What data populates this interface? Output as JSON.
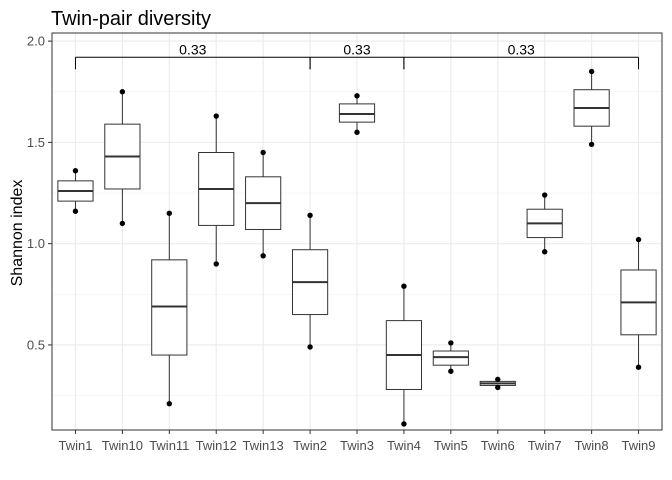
{
  "chart_data": {
    "type": "box",
    "title": "Twin-pair diversity",
    "xlabel": "",
    "ylabel": "Shannon index",
    "ylim": [
      0.08,
      2.04
    ],
    "yticks": [
      0.5,
      1.0,
      1.5,
      2.0
    ],
    "ytick_labels": [
      "0.5",
      "1.0",
      "1.5",
      "2.0"
    ],
    "grid": true,
    "legend": "none",
    "categories": [
      "Twin1",
      "Twin10",
      "Twin11",
      "Twin12",
      "Twin13",
      "Twin2",
      "Twin3",
      "Twin4",
      "Twin5",
      "Twin6",
      "Twin7",
      "Twin8",
      "Twin9"
    ],
    "boxes": [
      {
        "min": 1.16,
        "q1": 1.21,
        "median": 1.26,
        "q3": 1.31,
        "max": 1.36
      },
      {
        "min": 1.1,
        "q1": 1.27,
        "median": 1.43,
        "q3": 1.59,
        "max": 1.75
      },
      {
        "min": 0.21,
        "q1": 0.45,
        "median": 0.69,
        "q3": 0.92,
        "max": 1.15
      },
      {
        "min": 0.9,
        "q1": 1.09,
        "median": 1.27,
        "q3": 1.45,
        "max": 1.63
      },
      {
        "min": 0.94,
        "q1": 1.07,
        "median": 1.2,
        "q3": 1.33,
        "max": 1.45
      },
      {
        "min": 0.49,
        "q1": 0.65,
        "median": 0.81,
        "q3": 0.97,
        "max": 1.14
      },
      {
        "min": 1.55,
        "q1": 1.6,
        "median": 1.64,
        "q3": 1.69,
        "max": 1.73
      },
      {
        "min": 0.11,
        "q1": 0.28,
        "median": 0.45,
        "q3": 0.62,
        "max": 0.79
      },
      {
        "min": 0.37,
        "q1": 0.4,
        "median": 0.44,
        "q3": 0.47,
        "max": 0.51
      },
      {
        "min": 0.29,
        "q1": 0.3,
        "median": 0.31,
        "q3": 0.32,
        "max": 0.33
      },
      {
        "min": 0.96,
        "q1": 1.03,
        "median": 1.1,
        "q3": 1.17,
        "max": 1.24
      },
      {
        "min": 1.49,
        "q1": 1.58,
        "median": 1.67,
        "q3": 1.76,
        "max": 1.85
      },
      {
        "min": 0.39,
        "q1": 0.55,
        "median": 0.71,
        "q3": 0.87,
        "max": 1.02
      }
    ],
    "points": [
      {
        "category": "Twin1",
        "values": [
          1.16,
          1.36
        ]
      },
      {
        "category": "Twin10",
        "values": [
          1.1,
          1.75
        ]
      },
      {
        "category": "Twin11",
        "values": [
          0.21,
          1.15
        ]
      },
      {
        "category": "Twin12",
        "values": [
          0.9,
          1.63
        ]
      },
      {
        "category": "Twin13",
        "values": [
          0.94,
          1.45
        ]
      },
      {
        "category": "Twin2",
        "values": [
          0.49,
          1.14
        ]
      },
      {
        "category": "Twin3",
        "values": [
          1.55,
          1.73
        ]
      },
      {
        "category": "Twin4",
        "values": [
          0.11,
          0.79
        ]
      },
      {
        "category": "Twin5",
        "values": [
          0.37,
          0.51
        ]
      },
      {
        "category": "Twin6",
        "values": [
          0.29,
          0.33
        ]
      },
      {
        "category": "Twin7",
        "values": [
          0.96,
          1.24
        ]
      },
      {
        "category": "Twin8",
        "values": [
          1.49,
          1.85
        ]
      },
      {
        "category": "Twin9",
        "values": [
          0.39,
          1.02
        ]
      }
    ],
    "comparisons": [
      {
        "groups": [
          "Twin1",
          "Twin2"
        ],
        "label": "0.33"
      },
      {
        "groups": [
          "Twin2",
          "Twin4"
        ],
        "label": "0.33"
      },
      {
        "groups": [
          "Twin4",
          "Twin9"
        ],
        "label": "0.33"
      }
    ],
    "comparison_y": 1.92
  }
}
